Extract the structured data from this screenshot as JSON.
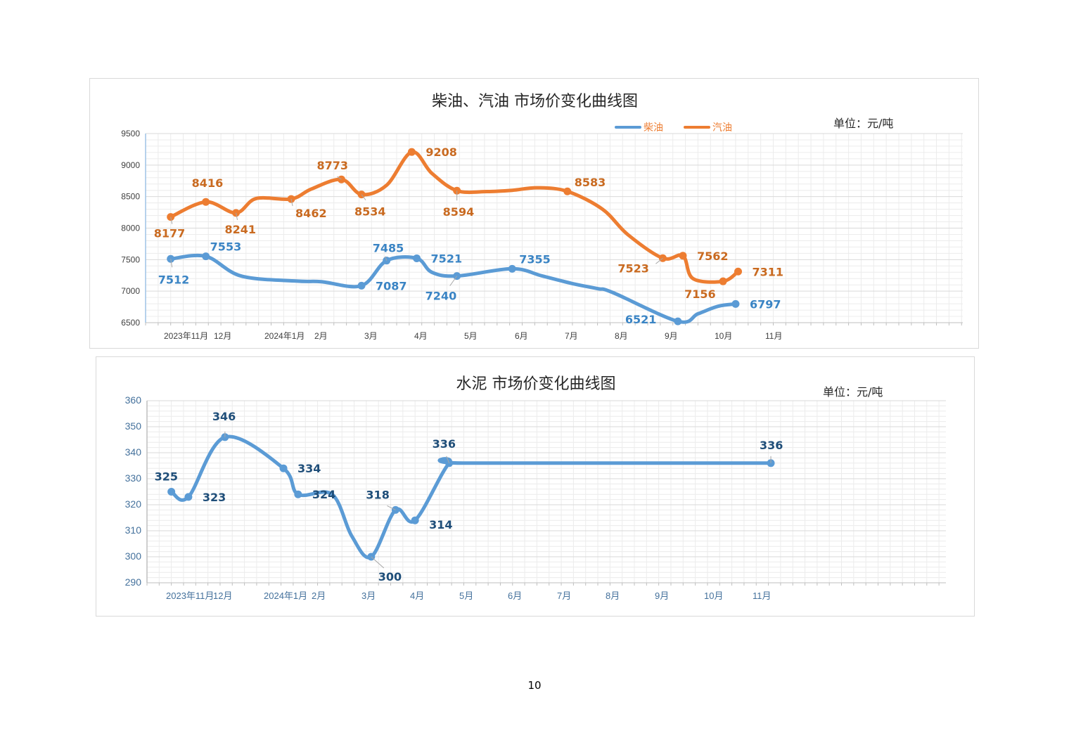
{
  "page": {
    "page_number": "10"
  },
  "colors": {
    "diesel": "#5b9bd5",
    "gasoline": "#ed7d31",
    "diesel_label": "#3a84c4",
    "gasoline_label": "#c96a20",
    "cement": "#5b9bd5",
    "cement_label": "#1f4e79",
    "grid_major": "#d9d9d9",
    "grid_minor": "#ececec",
    "axis_text": "#404040",
    "cement_axis_text": "#44719c"
  },
  "chart_data": [
    {
      "type": "line",
      "title": "柴油、汽油 市场价变化曲线图",
      "unit_label": "单位：元/吨",
      "legend": [
        "柴油",
        "汽油"
      ],
      "legend_position": "top-right",
      "grid": true,
      "ylim": [
        6500,
        9500
      ],
      "yticks": [
        "6500",
        "7000",
        "7500",
        "8000",
        "8500",
        "9000",
        "9500"
      ],
      "xtick_labels": [
        "2023年11月",
        "12月",
        "2024年1月",
        "2月",
        "3月",
        "4月",
        "5月",
        "6月",
        "7月",
        "8月",
        "9月",
        "10月",
        "11月"
      ],
      "series": [
        {
          "name": "柴油",
          "color": "#5b9bd5",
          "x": [
            0.5,
            1.2,
            1.9,
            3.0,
            3.5,
            4.3,
            4.8,
            5.4,
            5.7,
            6.2,
            7.3,
            7.9,
            8.5,
            9.0,
            9.3,
            10.6,
            11.0,
            11.4,
            11.75
          ],
          "values": [
            7512,
            7553,
            7240,
            7160,
            7150,
            7087,
            7485,
            7521,
            7300,
            7240,
            7355,
            7240,
            7120,
            7040,
            6980,
            6521,
            6640,
            6760,
            6797
          ],
          "labeled": [
            {
              "value": 7512,
              "text": "7512"
            },
            {
              "value": 7553,
              "text": "7553"
            },
            {
              "value": 7087,
              "text": "7087"
            },
            {
              "value": 7485,
              "text": "7485"
            },
            {
              "value": 7521,
              "text": "7521"
            },
            {
              "value": 7240,
              "text": "7240"
            },
            {
              "value": 7355,
              "text": "7355"
            },
            {
              "value": 6521,
              "text": "6521"
            },
            {
              "value": 6797,
              "text": "6797"
            }
          ]
        },
        {
          "name": "汽油",
          "color": "#ed7d31",
          "x": [
            0.5,
            1.2,
            1.8,
            2.2,
            2.9,
            3.3,
            3.9,
            4.3,
            4.8,
            5.3,
            5.7,
            6.2,
            6.8,
            7.3,
            7.8,
            8.4,
            9.1,
            9.6,
            10.3,
            10.7,
            10.9,
            11.5,
            11.8
          ],
          "values": [
            8177,
            8416,
            8241,
            8470,
            8462,
            8620,
            8773,
            8534,
            8680,
            9208,
            8870,
            8594,
            8580,
            8600,
            8640,
            8583,
            8300,
            7900,
            7523,
            7562,
            7200,
            7156,
            7311
          ],
          "labeled": [
            {
              "value": 8177,
              "text": "8177"
            },
            {
              "value": 8416,
              "text": "8416"
            },
            {
              "value": 8241,
              "text": "8241"
            },
            {
              "value": 8462,
              "text": "8462"
            },
            {
              "value": 8773,
              "text": "8773"
            },
            {
              "value": 8534,
              "text": "8534"
            },
            {
              "value": 9208,
              "text": "9208"
            },
            {
              "value": 8594,
              "text": "8594"
            },
            {
              "value": 8583,
              "text": "8583"
            },
            {
              "value": 7523,
              "text": "7523"
            },
            {
              "value": 7562,
              "text": "7562"
            },
            {
              "value": 7156,
              "text": "7156"
            },
            {
              "value": 7311,
              "text": "7311"
            }
          ]
        }
      ]
    },
    {
      "type": "line",
      "title": "水泥 市场价变化曲线图",
      "unit_label": "单位：元/吨",
      "grid": true,
      "ylim": [
        290,
        360
      ],
      "yticks": [
        "290",
        "300",
        "310",
        "320",
        "330",
        "340",
        "350",
        "360"
      ],
      "xtick_labels": [
        "2023年11月",
        "12月",
        "2024年1月",
        "2月",
        "3月",
        "4月",
        "5月",
        "6月",
        "7月",
        "8月",
        "9月",
        "10月",
        "11月"
      ],
      "series": [
        {
          "name": "水泥",
          "color": "#5b9bd5",
          "x": [
            0.5,
            0.85,
            1.6,
            2.8,
            3.1,
            3.8,
            4.2,
            4.6,
            5.1,
            5.5,
            6.2,
            6.55,
            12.8
          ],
          "values": [
            325,
            323,
            346,
            334,
            324,
            324,
            308,
            300,
            318,
            314,
            336,
            336,
            336
          ],
          "labeled": [
            {
              "value": 325,
              "text": "325"
            },
            {
              "value": 323,
              "text": "323"
            },
            {
              "value": 346,
              "text": "346"
            },
            {
              "value": 334,
              "text": "334"
            },
            {
              "value": 324,
              "text": "324"
            },
            {
              "value": 300,
              "text": "300"
            },
            {
              "value": 318,
              "text": "318"
            },
            {
              "value": 314,
              "text": "314"
            },
            {
              "value": 336,
              "text": "336"
            },
            {
              "value": 336,
              "text": "336"
            }
          ]
        }
      ]
    }
  ]
}
